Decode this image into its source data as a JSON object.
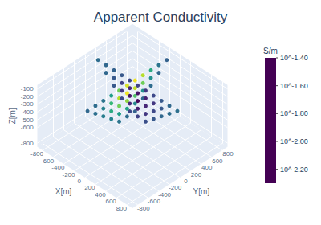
{
  "chart_data": {
    "type": "scatter3d",
    "title": "Apparent Conductivity",
    "x_label": "X[m]",
    "y_label": "Y[m]",
    "z_label": "Z[m]",
    "x": [
      -100,
      -100,
      -100,
      -100,
      -100,
      -100,
      -100,
      -100,
      -100,
      -100,
      -100,
      -100,
      -100,
      -100,
      -100,
      -100,
      -100,
      -100,
      -100,
      -100,
      -100,
      -100,
      -100,
      -100,
      -100,
      -100,
      -100,
      -100,
      -100,
      -100,
      -100,
      -100,
      -100,
      -100,
      -100,
      -750,
      -600,
      -450,
      -300,
      -150,
      0,
      150,
      300,
      450,
      600,
      750,
      -600,
      -450,
      -300,
      -150,
      0,
      150,
      300,
      450,
      600,
      -450,
      -300,
      -150,
      0,
      150,
      300,
      450,
      -300,
      -150,
      0,
      150,
      300,
      -150,
      0,
      150
    ],
    "y": [
      -750,
      -600,
      -450,
      -300,
      -150,
      0,
      150,
      300,
      450,
      600,
      750,
      -600,
      -450,
      -300,
      -150,
      0,
      150,
      300,
      450,
      600,
      -450,
      -300,
      -150,
      0,
      150,
      300,
      450,
      -300,
      -150,
      0,
      150,
      300,
      -150,
      0,
      150,
      100,
      100,
      100,
      100,
      100,
      100,
      100,
      100,
      100,
      100,
      100,
      100,
      100,
      100,
      100,
      100,
      100,
      100,
      100,
      100,
      100,
      100,
      100,
      100,
      100,
      100,
      100,
      100,
      100,
      100,
      100,
      100,
      100,
      100,
      100
    ],
    "z": [
      -100,
      -100,
      -100,
      -100,
      -100,
      -100,
      -100,
      -100,
      -100,
      -100,
      -100,
      -200,
      -200,
      -200,
      -200,
      -200,
      -200,
      -200,
      -200,
      -200,
      -300,
      -300,
      -300,
      -300,
      -300,
      -300,
      -300,
      -400,
      -400,
      -400,
      -400,
      -400,
      -500,
      -500,
      -500,
      -100,
      -100,
      -100,
      -100,
      -100,
      -100,
      -100,
      -100,
      -100,
      -100,
      -100,
      -200,
      -200,
      -200,
      -200,
      -200,
      -200,
      -200,
      -200,
      -200,
      -300,
      -300,
      -300,
      -300,
      -300,
      -300,
      -300,
      -400,
      -400,
      -400,
      -400,
      -400,
      -500,
      -500,
      -500
    ],
    "values": [
      -2.0,
      -1.98,
      -1.95,
      -1.8,
      -1.6,
      -1.45,
      -1.42,
      -1.5,
      -1.75,
      -1.95,
      -2.02,
      -1.97,
      -1.9,
      -1.7,
      -1.5,
      -1.42,
      -1.48,
      -1.6,
      -1.85,
      -2.0,
      -1.92,
      -1.75,
      -1.6,
      -1.55,
      -1.65,
      -1.85,
      -1.98,
      -1.9,
      -1.8,
      -1.78,
      -1.88,
      -2.0,
      -1.95,
      -1.98,
      -2.02,
      -1.98,
      -2.0,
      -2.02,
      -2.05,
      -2.1,
      -2.12,
      -2.15,
      -2.1,
      -2.05,
      -2.0,
      -1.97,
      -2.0,
      -2.05,
      -2.12,
      -2.2,
      -2.25,
      -2.22,
      -2.15,
      -2.05,
      -1.98,
      -2.05,
      -2.15,
      -2.25,
      -2.28,
      -2.2,
      -2.1,
      -2.0,
      -2.1,
      -2.2,
      -2.22,
      -2.15,
      -2.05,
      -2.1,
      -2.12,
      -2.08
    ],
    "xlim": [
      -900,
      900
    ],
    "xticks": [
      -800,
      -600,
      -400,
      -200,
      0,
      200,
      400,
      600,
      800
    ],
    "ylim": [
      -900,
      900
    ],
    "yticks": [
      -800,
      -600,
      -400,
      -200,
      0,
      200,
      400,
      600,
      800
    ],
    "zlim": [
      -850,
      -50
    ],
    "zticks": [
      -800,
      -600,
      -500,
      -400,
      -300,
      -200,
      -100
    ],
    "colorbar": {
      "title": "S/m",
      "range": [
        -2.3,
        -1.4
      ],
      "ticks": [
        {
          "value": -1.4,
          "label": "10^-1.40"
        },
        {
          "value": -1.6,
          "label": "10^-1.60"
        },
        {
          "value": -1.8,
          "label": "10^-1.80"
        },
        {
          "value": -2.0,
          "label": "10^-2.00"
        },
        {
          "value": -2.2,
          "label": "10^-2.20"
        }
      ]
    },
    "grid": true
  }
}
